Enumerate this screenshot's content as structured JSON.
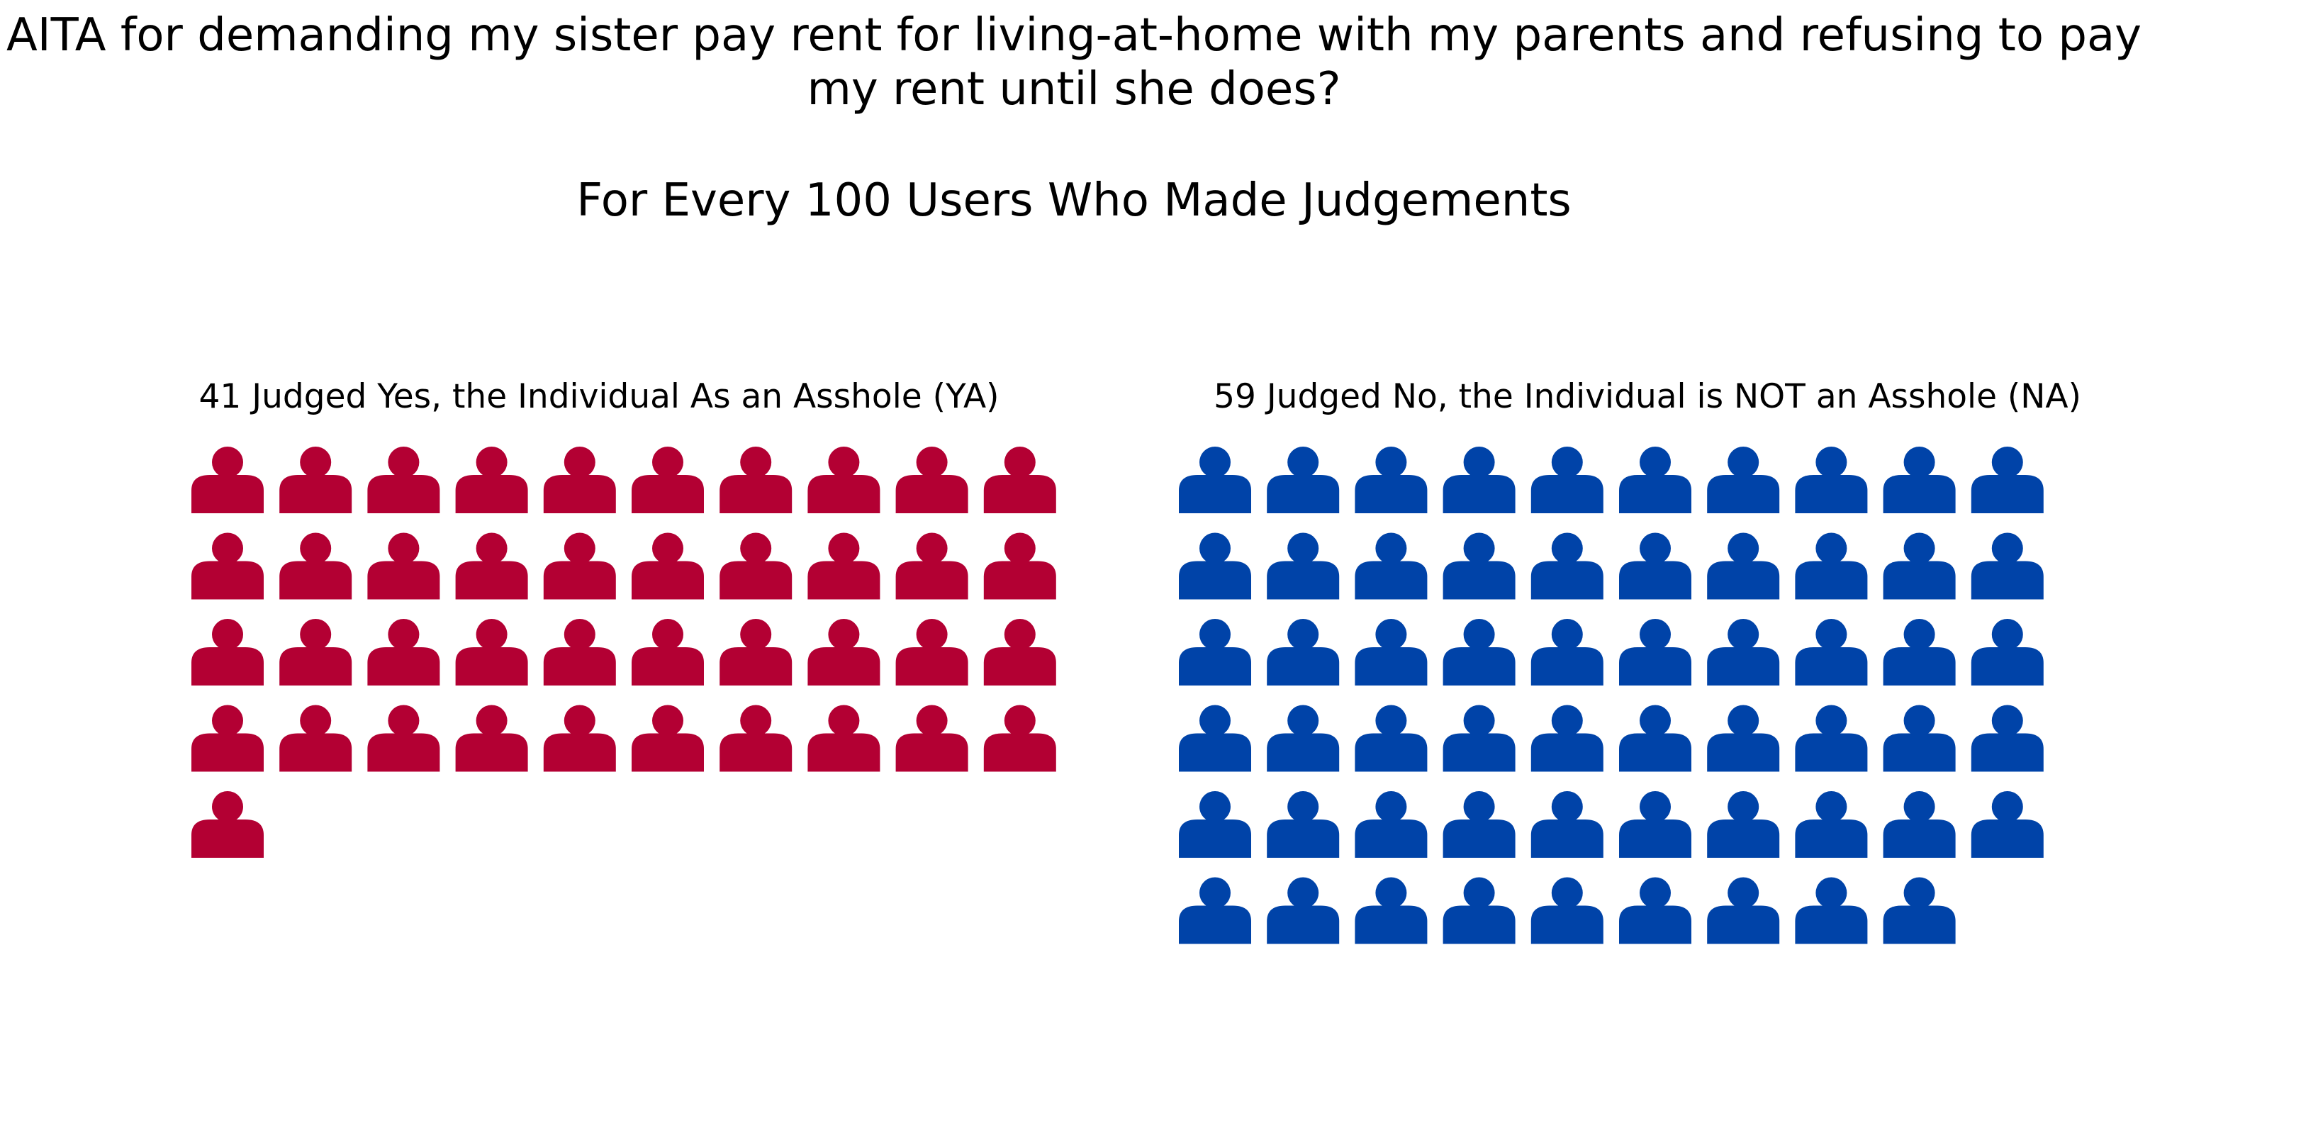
{
  "chart_data": {
    "type": "waffle",
    "title": "AITA for demanding my sister pay rent for living-at-home with my parents and refusing to pay my rent until she does?",
    "subtitle": "For Every 100 Users Who Made Judgements",
    "icon": "person-icon",
    "icons_per_row": 10,
    "total": 100,
    "series": [
      {
        "key": "ya",
        "label": "41 Judged Yes, the Individual As an Asshole (YA)",
        "value": 41,
        "color": "#B30033"
      },
      {
        "key": "na",
        "label": "59 Judged No, the Individual is NOT an Asshole (NA)",
        "value": 59,
        "color": "#0043A8"
      }
    ]
  }
}
